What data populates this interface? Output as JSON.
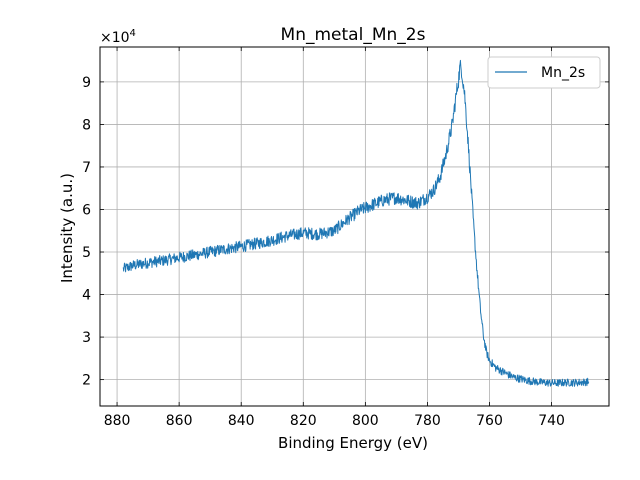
{
  "chart_data": {
    "type": "line",
    "title": "Mn_metal_Mn_2s",
    "xlabel": "Binding Energy (eV)",
    "ylabel": "Intensity (a.u.)",
    "y_multiplier_base": "×10",
    "y_multiplier_exp": "4",
    "x_reversed": true,
    "xlim": [
      885.5,
      721.5
    ],
    "ylim": [
      1.38,
      9.82
    ],
    "x_ticks": [
      880,
      860,
      840,
      820,
      800,
      780,
      760,
      740
    ],
    "x_tick_labels": [
      "880",
      "860",
      "840",
      "820",
      "800",
      "780",
      "760",
      "740"
    ],
    "y_ticks": [
      2,
      3,
      4,
      5,
      6,
      7,
      8,
      9
    ],
    "y_tick_labels": [
      "2",
      "3",
      "4",
      "5",
      "6",
      "7",
      "8",
      "9"
    ],
    "grid": true,
    "legend_position": "top-right",
    "series": [
      {
        "name": "Mn_2s",
        "color": "#1f77b4",
        "x": [
          878,
          875,
          870,
          865,
          860,
          855,
          850,
          845,
          840,
          835,
          830,
          825,
          820,
          815,
          810,
          806,
          802,
          798,
          794,
          790,
          786,
          783,
          780,
          778,
          776,
          774,
          772,
          771,
          770,
          769.5,
          769,
          768,
          767,
          766,
          765,
          764,
          763,
          762,
          761,
          760,
          758,
          756,
          754,
          752,
          750,
          748,
          746,
          744,
          742,
          740,
          738,
          736,
          734,
          732,
          730,
          728
        ],
        "values": [
          4.6,
          4.68,
          4.75,
          4.8,
          4.87,
          4.93,
          5.0,
          5.07,
          5.13,
          5.2,
          5.28,
          5.38,
          5.45,
          5.42,
          5.5,
          5.75,
          5.97,
          6.1,
          6.22,
          6.28,
          6.2,
          6.15,
          6.3,
          6.45,
          6.75,
          7.3,
          8.0,
          8.55,
          9.05,
          9.35,
          9.3,
          8.7,
          7.7,
          6.6,
          5.5,
          4.55,
          3.7,
          3.05,
          2.65,
          2.45,
          2.28,
          2.2,
          2.12,
          2.05,
          2.02,
          1.98,
          1.96,
          1.94,
          1.93,
          1.92,
          1.92,
          1.93,
          1.93,
          1.93,
          1.94,
          1.95
        ]
      }
    ]
  }
}
